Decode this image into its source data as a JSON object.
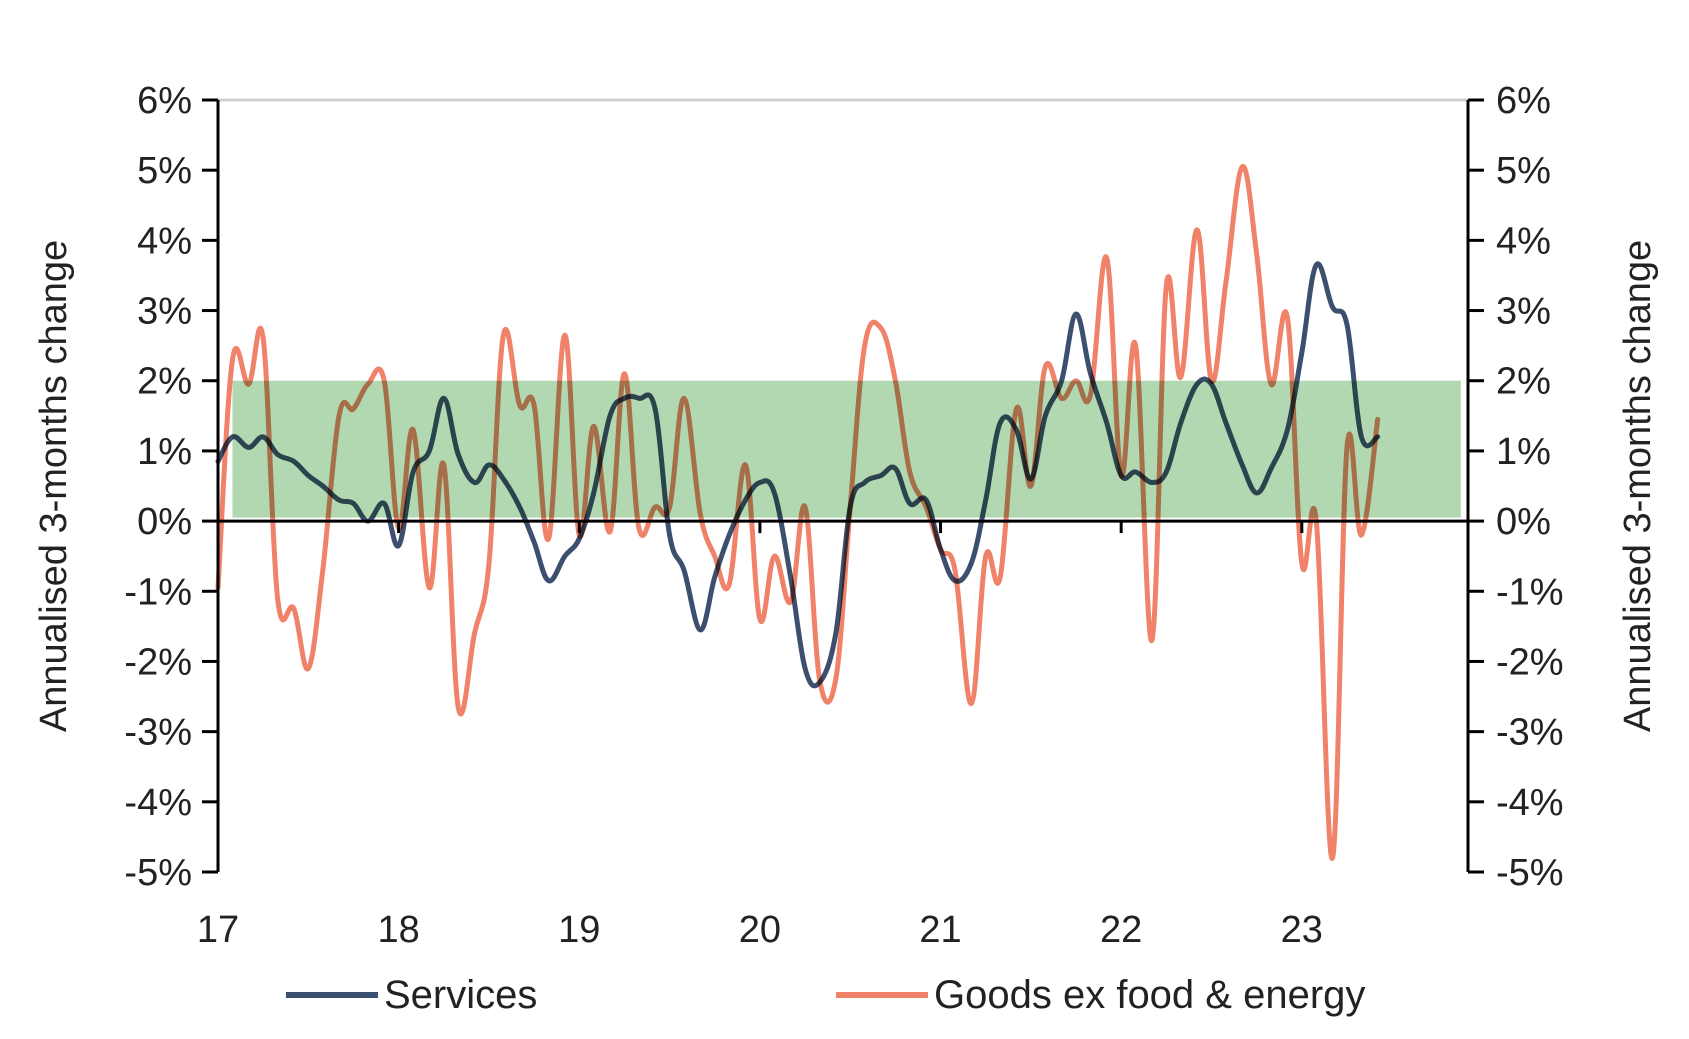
{
  "chart_data": {
    "type": "line",
    "title": "",
    "xlabel": "",
    "ylabel": "Annualised 3-months change",
    "y2label": "Annualised 3-months change",
    "x_ticks": [
      {
        "value": 2017,
        "label": "17"
      },
      {
        "value": 2018,
        "label": "18"
      },
      {
        "value": 2019,
        "label": "19"
      },
      {
        "value": 2020,
        "label": "20"
      },
      {
        "value": 2021,
        "label": "21"
      },
      {
        "value": 2022,
        "label": "22"
      },
      {
        "value": 2023,
        "label": "23"
      }
    ],
    "xlim": [
      2017,
      2023.92
    ],
    "ylim": [
      -5,
      6
    ],
    "y_ticks": [
      {
        "value": 6,
        "label": "6%"
      },
      {
        "value": 5,
        "label": "5%"
      },
      {
        "value": 4,
        "label": "4%"
      },
      {
        "value": 3,
        "label": "3%"
      },
      {
        "value": 2,
        "label": "2%"
      },
      {
        "value": 1,
        "label": "1%"
      },
      {
        "value": 0,
        "label": "0%"
      },
      {
        "value": -1,
        "label": "-1%"
      },
      {
        "value": -2,
        "label": "-2%"
      },
      {
        "value": -3,
        "label": "-3%"
      },
      {
        "value": -4,
        "label": "-4%"
      },
      {
        "value": -5,
        "label": "-5%"
      }
    ],
    "target_band": {
      "x": [
        2017.08,
        2023.88
      ],
      "y": [
        0.05,
        2.0
      ],
      "color": "#b2d8b2"
    },
    "grid": "top border only",
    "legend_position": "bottom",
    "series": [
      {
        "name": "Services",
        "color": "#3d4f6e",
        "points": [
          [
            2017.0,
            0.85
          ],
          [
            2017.08,
            1.2
          ],
          [
            2017.17,
            1.05
          ],
          [
            2017.25,
            1.2
          ],
          [
            2017.33,
            0.95
          ],
          [
            2017.42,
            0.85
          ],
          [
            2017.5,
            0.65
          ],
          [
            2017.58,
            0.5
          ],
          [
            2017.67,
            0.3
          ],
          [
            2017.75,
            0.25
          ],
          [
            2017.83,
            0.0
          ],
          [
            2017.92,
            0.25
          ],
          [
            2018.0,
            -0.35
          ],
          [
            2018.08,
            0.7
          ],
          [
            2018.17,
            1.0
          ],
          [
            2018.25,
            1.75
          ],
          [
            2018.33,
            0.95
          ],
          [
            2018.42,
            0.55
          ],
          [
            2018.5,
            0.8
          ],
          [
            2018.58,
            0.6
          ],
          [
            2018.67,
            0.2
          ],
          [
            2018.75,
            -0.3
          ],
          [
            2018.83,
            -0.85
          ],
          [
            2018.92,
            -0.5
          ],
          [
            2019.0,
            -0.25
          ],
          [
            2019.08,
            0.4
          ],
          [
            2019.17,
            1.5
          ],
          [
            2019.25,
            1.75
          ],
          [
            2019.33,
            1.75
          ],
          [
            2019.42,
            1.6
          ],
          [
            2019.5,
            -0.2
          ],
          [
            2019.58,
            -0.7
          ],
          [
            2019.67,
            -1.55
          ],
          [
            2019.75,
            -0.8
          ],
          [
            2019.83,
            -0.2
          ],
          [
            2019.92,
            0.3
          ],
          [
            2020.0,
            0.55
          ],
          [
            2020.08,
            0.4
          ],
          [
            2020.17,
            -0.8
          ],
          [
            2020.25,
            -2.1
          ],
          [
            2020.33,
            -2.3
          ],
          [
            2020.42,
            -1.6
          ],
          [
            2020.5,
            0.2
          ],
          [
            2020.58,
            0.55
          ],
          [
            2020.67,
            0.65
          ],
          [
            2020.75,
            0.75
          ],
          [
            2020.83,
            0.25
          ],
          [
            2020.92,
            0.3
          ],
          [
            2021.0,
            -0.4
          ],
          [
            2021.08,
            -0.85
          ],
          [
            2021.17,
            -0.6
          ],
          [
            2021.25,
            0.3
          ],
          [
            2021.33,
            1.4
          ],
          [
            2021.42,
            1.3
          ],
          [
            2021.5,
            0.6
          ],
          [
            2021.58,
            1.5
          ],
          [
            2021.67,
            2.0
          ],
          [
            2021.75,
            2.95
          ],
          [
            2021.83,
            2.1
          ],
          [
            2021.92,
            1.4
          ],
          [
            2022.0,
            0.65
          ],
          [
            2022.08,
            0.7
          ],
          [
            2022.17,
            0.55
          ],
          [
            2022.25,
            0.7
          ],
          [
            2022.33,
            1.4
          ],
          [
            2022.42,
            1.95
          ],
          [
            2022.5,
            1.95
          ],
          [
            2022.58,
            1.4
          ],
          [
            2022.67,
            0.8
          ],
          [
            2022.75,
            0.4
          ],
          [
            2022.83,
            0.75
          ],
          [
            2022.92,
            1.3
          ],
          [
            2023.0,
            2.4
          ],
          [
            2023.08,
            3.65
          ],
          [
            2023.17,
            3.05
          ],
          [
            2023.25,
            2.8
          ],
          [
            2023.33,
            1.2
          ],
          [
            2023.42,
            1.2
          ]
        ]
      },
      {
        "name": "Goods ex food & energy",
        "color": "#f0826a",
        "points": [
          [
            2017.0,
            -0.95
          ],
          [
            2017.08,
            2.3
          ],
          [
            2017.17,
            1.95
          ],
          [
            2017.25,
            2.6
          ],
          [
            2017.33,
            -1.1
          ],
          [
            2017.42,
            -1.25
          ],
          [
            2017.5,
            -2.1
          ],
          [
            2017.58,
            -0.7
          ],
          [
            2017.67,
            1.5
          ],
          [
            2017.75,
            1.6
          ],
          [
            2017.83,
            1.95
          ],
          [
            2017.92,
            2.0
          ],
          [
            2018.0,
            -0.1
          ],
          [
            2018.08,
            1.3
          ],
          [
            2018.17,
            -0.95
          ],
          [
            2018.25,
            0.8
          ],
          [
            2018.33,
            -2.65
          ],
          [
            2018.42,
            -1.6
          ],
          [
            2018.5,
            -0.6
          ],
          [
            2018.58,
            2.65
          ],
          [
            2018.67,
            1.65
          ],
          [
            2018.75,
            1.65
          ],
          [
            2018.83,
            -0.25
          ],
          [
            2018.92,
            2.65
          ],
          [
            2019.0,
            -0.2
          ],
          [
            2019.08,
            1.35
          ],
          [
            2019.17,
            -0.15
          ],
          [
            2019.25,
            2.1
          ],
          [
            2019.33,
            -0.1
          ],
          [
            2019.42,
            0.2
          ],
          [
            2019.5,
            0.2
          ],
          [
            2019.58,
            1.75
          ],
          [
            2019.67,
            0.1
          ],
          [
            2019.75,
            -0.5
          ],
          [
            2019.83,
            -0.9
          ],
          [
            2019.92,
            0.8
          ],
          [
            2020.0,
            -1.4
          ],
          [
            2020.08,
            -0.5
          ],
          [
            2020.17,
            -1.15
          ],
          [
            2020.25,
            0.2
          ],
          [
            2020.33,
            -2.25
          ],
          [
            2020.42,
            -2.25
          ],
          [
            2020.5,
            0.2
          ],
          [
            2020.58,
            2.5
          ],
          [
            2020.67,
            2.75
          ],
          [
            2020.75,
            2.0
          ],
          [
            2020.83,
            0.7
          ],
          [
            2020.92,
            0.2
          ],
          [
            2021.0,
            -0.4
          ],
          [
            2021.08,
            -0.7
          ],
          [
            2021.17,
            -2.6
          ],
          [
            2021.25,
            -0.5
          ],
          [
            2021.33,
            -0.8
          ],
          [
            2021.42,
            1.6
          ],
          [
            2021.5,
            0.5
          ],
          [
            2021.58,
            2.2
          ],
          [
            2021.67,
            1.75
          ],
          [
            2021.75,
            2.0
          ],
          [
            2021.83,
            1.8
          ],
          [
            2021.92,
            3.75
          ],
          [
            2022.0,
            0.65
          ],
          [
            2022.08,
            2.5
          ],
          [
            2022.17,
            -1.7
          ],
          [
            2022.25,
            3.35
          ],
          [
            2022.33,
            2.05
          ],
          [
            2022.42,
            4.15
          ],
          [
            2022.5,
            2.0
          ],
          [
            2022.58,
            3.4
          ],
          [
            2022.67,
            5.05
          ],
          [
            2022.75,
            3.8
          ],
          [
            2022.83,
            1.95
          ],
          [
            2022.92,
            2.9
          ],
          [
            2023.0,
            -0.6
          ],
          [
            2023.08,
            0.0
          ],
          [
            2023.17,
            -4.8
          ],
          [
            2023.25,
            1.05
          ],
          [
            2023.33,
            -0.2
          ],
          [
            2023.42,
            1.45
          ]
        ]
      }
    ]
  }
}
